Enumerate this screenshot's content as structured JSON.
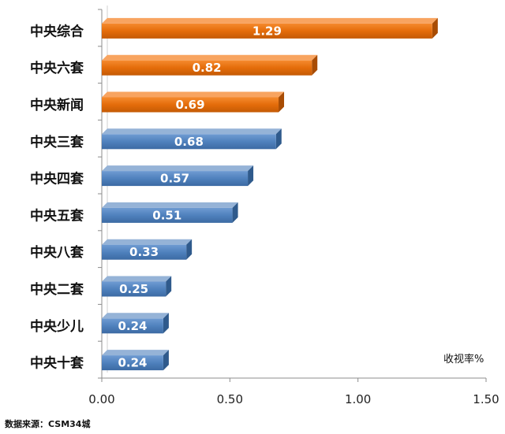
{
  "chart_data": {
    "type": "bar",
    "orientation": "horizontal",
    "categories": [
      "中央综合",
      "中央六套",
      "中央新闻",
      "中央三套",
      "中央四套",
      "中央五套",
      "中央八套",
      "中央二套",
      "中央少儿",
      "中央十套"
    ],
    "values": [
      1.29,
      0.82,
      0.69,
      0.68,
      0.57,
      0.51,
      0.33,
      0.25,
      0.24,
      0.24
    ],
    "data_labels": [
      "1.29",
      "0.82",
      "0.69",
      "0.68",
      "0.57",
      "0.51",
      "0.33",
      "0.25",
      "0.24",
      "0.24"
    ],
    "xlim": [
      0,
      1.5
    ],
    "x_ticks": [
      0,
      0.5,
      1.0,
      1.5
    ],
    "x_tick_labels": [
      "0.00",
      "0.50",
      "1.00",
      "1.50"
    ],
    "unit_label": "收视率%",
    "grid": false,
    "colors": {
      "highlight": "#E46C0A",
      "normal": "#4F81BD"
    },
    "highlight_count": 3
  },
  "source_note": "数据来源：CSM34城"
}
